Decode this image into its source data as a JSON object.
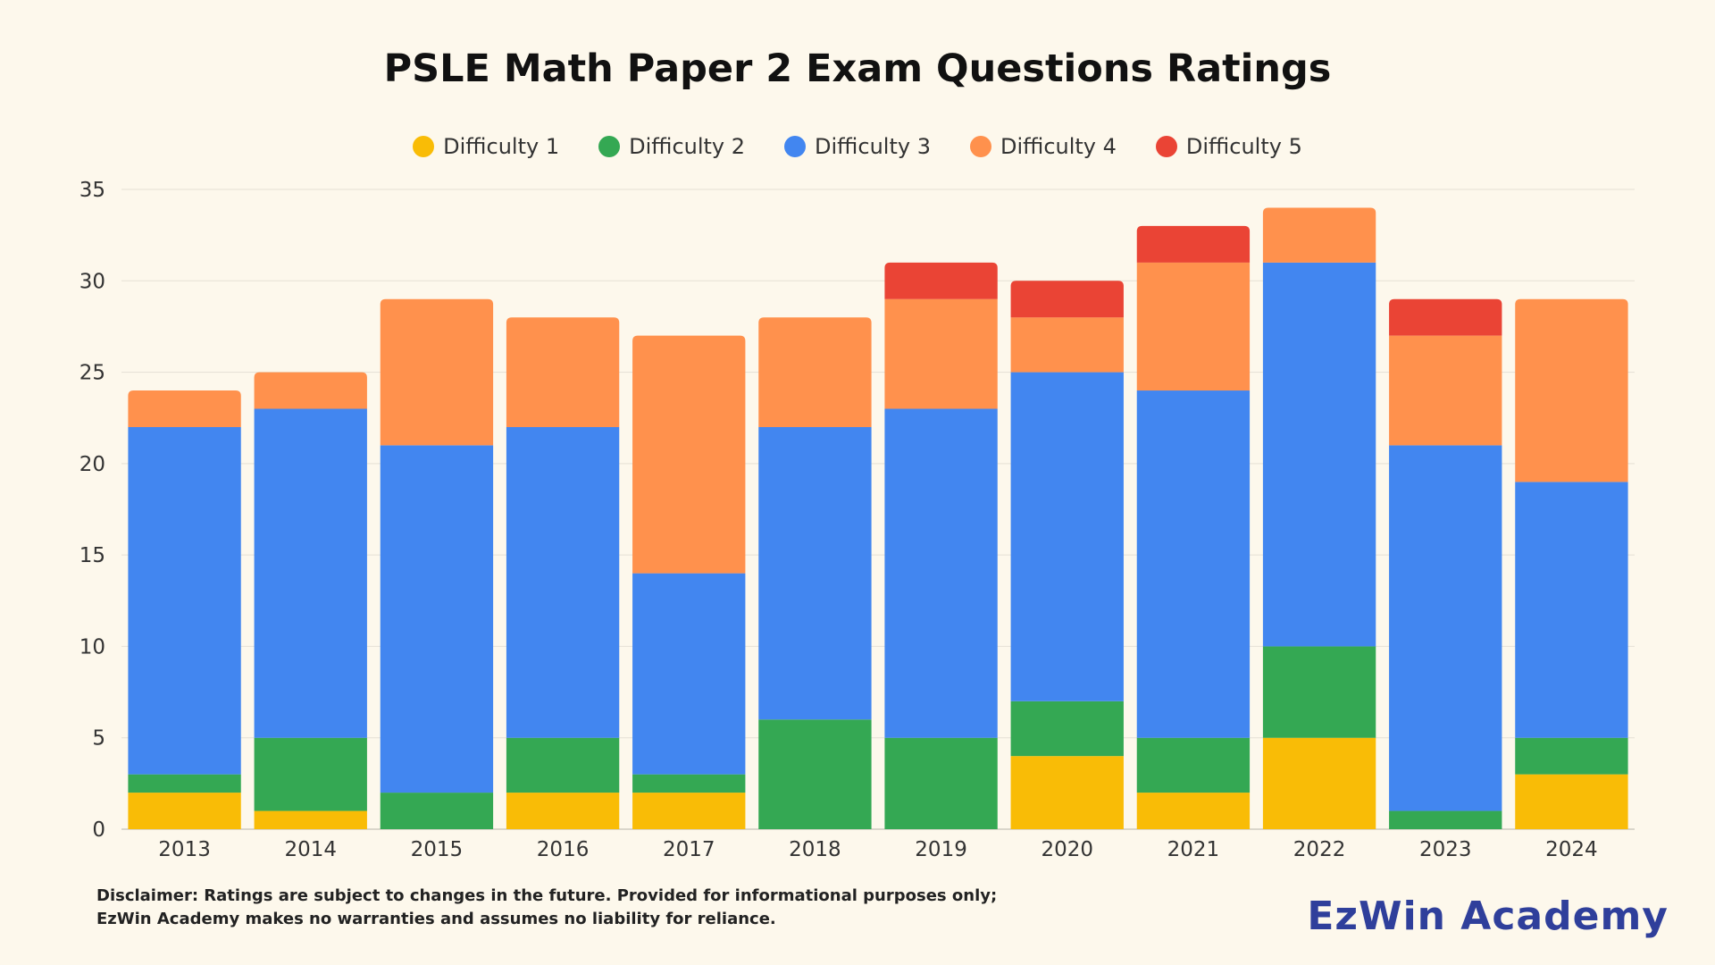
{
  "chart_data": {
    "type": "bar",
    "stacked": true,
    "title": "PSLE Math Paper 2 Exam Questions Ratings",
    "xlabel": "",
    "ylabel": "",
    "categories": [
      "2013",
      "2014",
      "2015",
      "2016",
      "2017",
      "2018",
      "2019",
      "2020",
      "2021",
      "2022",
      "2023",
      "2024"
    ],
    "series": [
      {
        "name": "Difficulty 1",
        "color": "#f9bc06",
        "values": [
          2,
          1,
          0,
          2,
          2,
          0,
          0,
          4,
          2,
          5,
          0,
          3
        ]
      },
      {
        "name": "Difficulty 2",
        "color": "#34a853",
        "values": [
          1,
          4,
          2,
          3,
          1,
          6,
          5,
          3,
          3,
          5,
          1,
          2
        ]
      },
      {
        "name": "Difficulty 3",
        "color": "#4286f0",
        "values": [
          19,
          18,
          19,
          17,
          11,
          16,
          18,
          18,
          19,
          21,
          20,
          14
        ]
      },
      {
        "name": "Difficulty 4",
        "color": "#ff914d",
        "values": [
          2,
          2,
          8,
          6,
          13,
          6,
          6,
          3,
          7,
          3,
          6,
          10
        ]
      },
      {
        "name": "Difficulty 5",
        "color": "#ea4435",
        "values": [
          0,
          0,
          0,
          0,
          0,
          0,
          2,
          2,
          2,
          0,
          2,
          0
        ]
      }
    ],
    "ylim": [
      0,
      35
    ],
    "yticks": [
      0,
      5,
      10,
      15,
      20,
      25,
      30,
      35
    ],
    "grid": true,
    "legend_position": "top-center"
  },
  "footer": {
    "disclaimer": "Disclaimer: Ratings are subject to changes in the future. Provided for informational purposes only; EzWin Academy makes no warranties and assumes no liability for reliance.",
    "brand": "EzWin Academy"
  }
}
